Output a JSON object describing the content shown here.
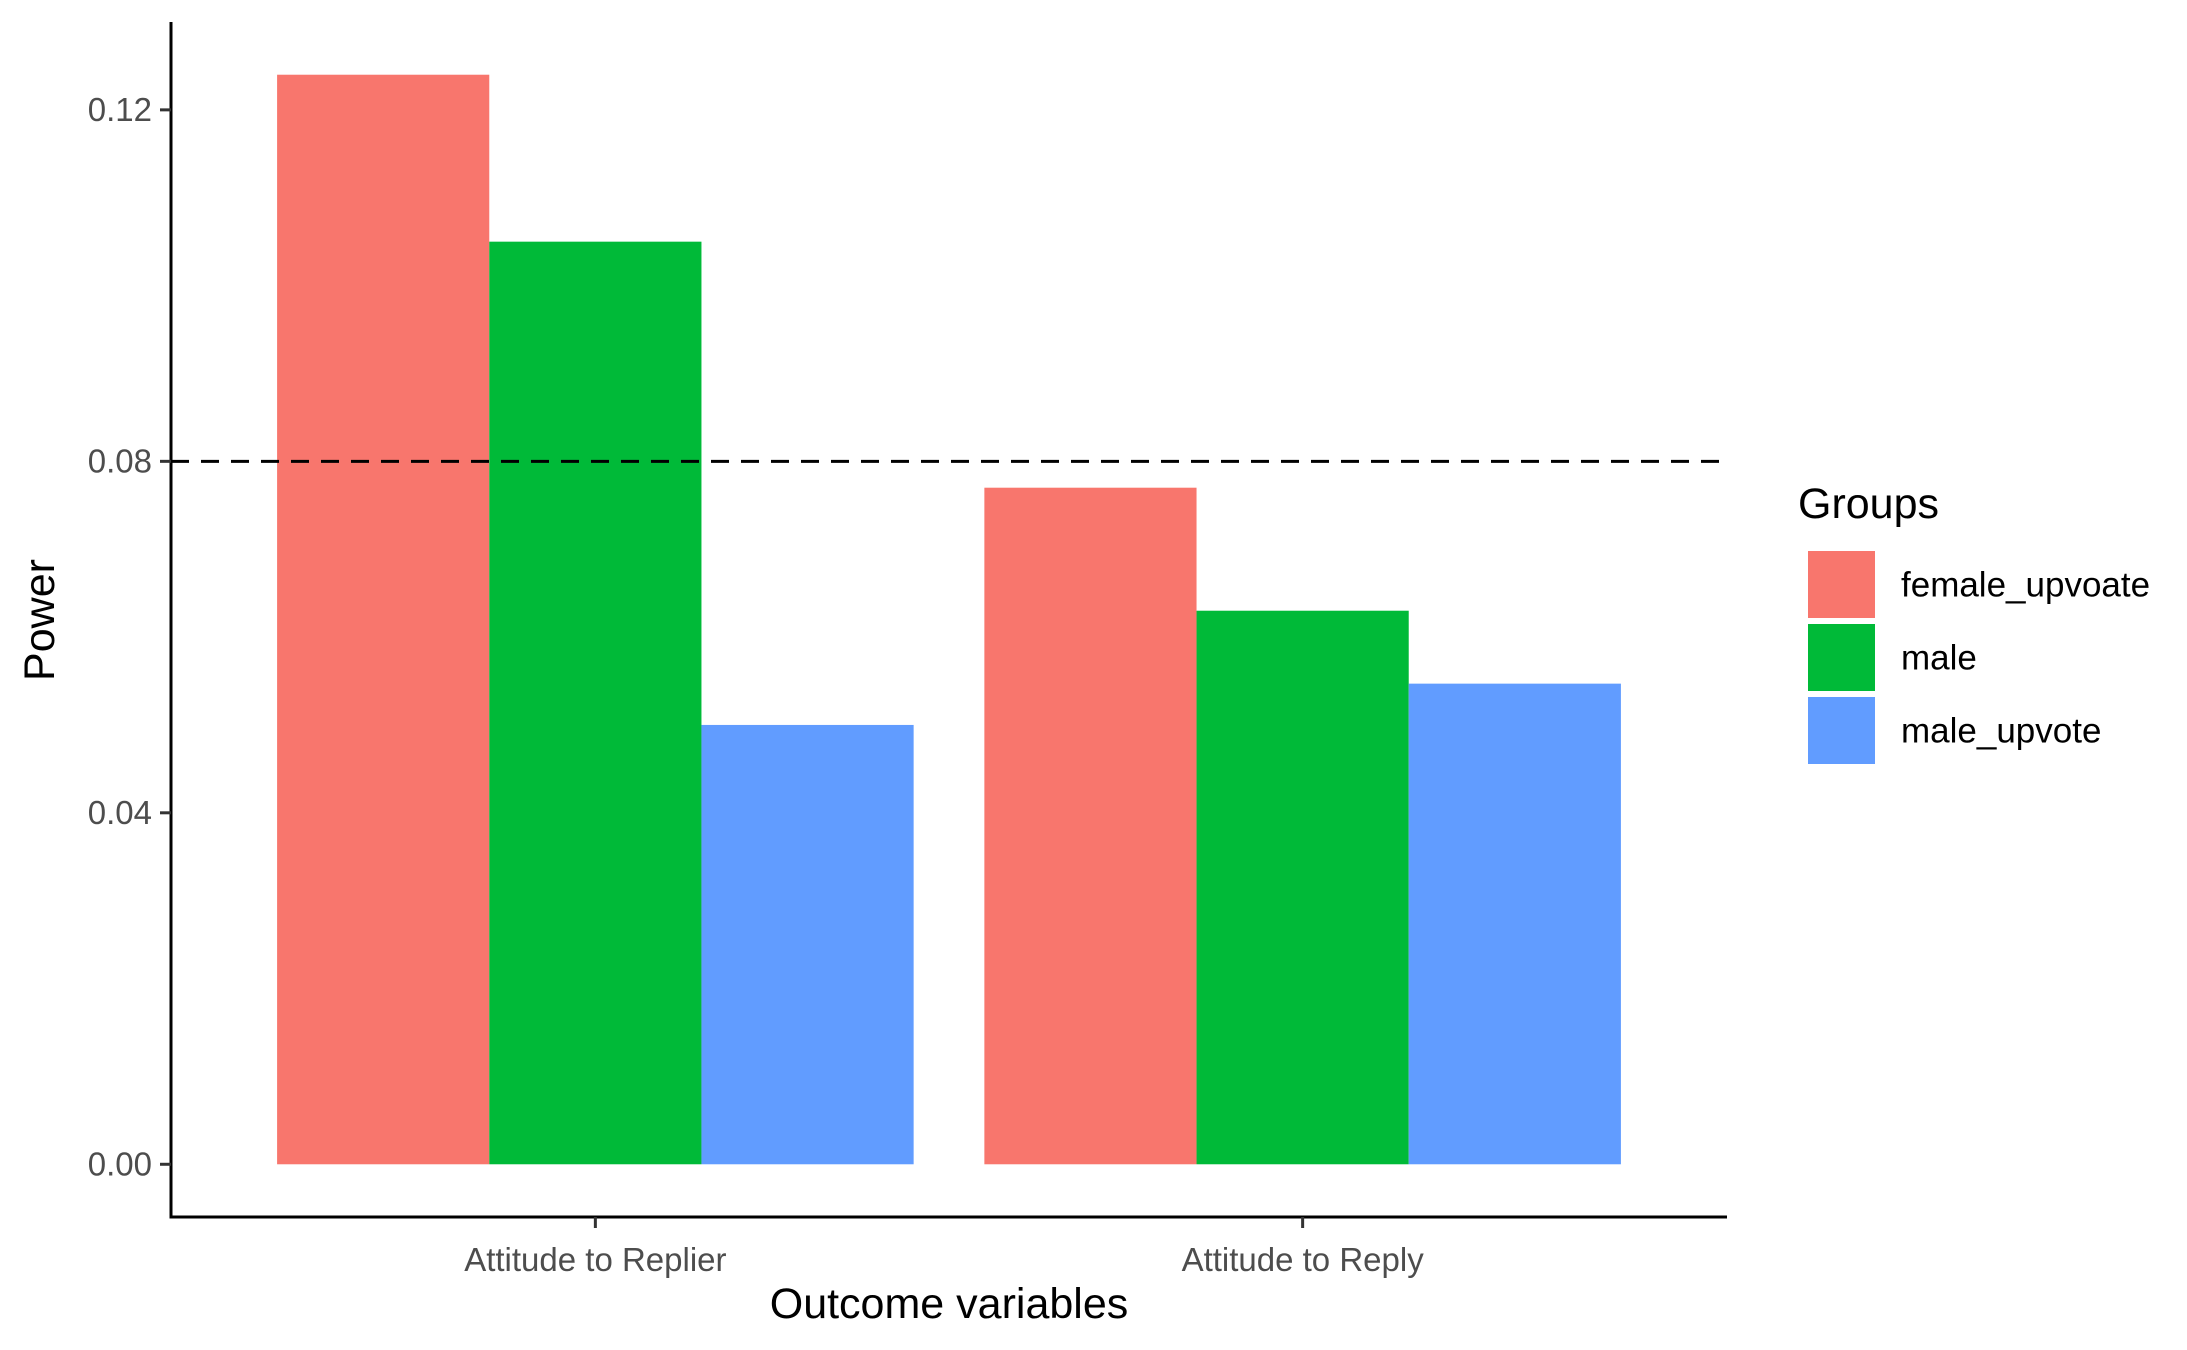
{
  "chart_data": {
    "type": "bar",
    "title": "",
    "xlabel": "Outcome variables",
    "ylabel": "Power",
    "categories": [
      "Attitude to Replier",
      "Attitude to Reply"
    ],
    "series": [
      {
        "name": "female_upvoate",
        "color": "#F8766D",
        "values": [
          0.124,
          0.077
        ]
      },
      {
        "name": "male",
        "color": "#00BA38",
        "values": [
          0.105,
          0.063
        ]
      },
      {
        "name": "male_upvote",
        "color": "#619CFF",
        "values": [
          0.05,
          0.0547
        ]
      }
    ],
    "ylim": [
      -0.006,
      0.13
    ],
    "yticks": [
      0.0,
      0.04,
      0.08,
      0.12
    ],
    "ytick_labels": [
      "0.00",
      "0.04",
      "0.08",
      "0.12"
    ],
    "reference_line": {
      "y": 0.08,
      "style": "dashed",
      "color": "#000000"
    },
    "legend": {
      "title": "Groups",
      "position": "right"
    },
    "grid": false
  }
}
